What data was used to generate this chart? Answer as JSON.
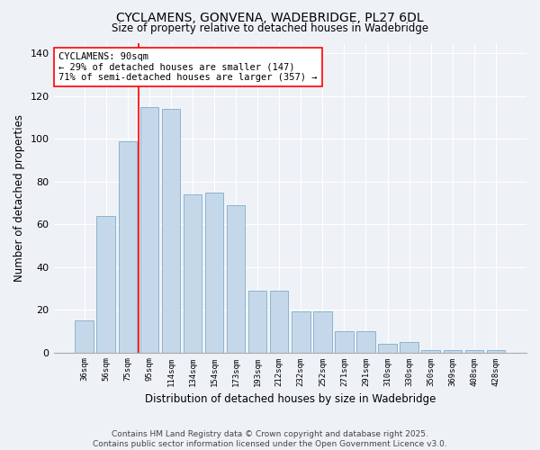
{
  "title": "CYCLAMENS, GONVENA, WADEBRIDGE, PL27 6DL",
  "subtitle": "Size of property relative to detached houses in Wadebridge",
  "xlabel": "Distribution of detached houses by size in Wadebridge",
  "ylabel": "Number of detached properties",
  "bar_color": "#c5d8ea",
  "bar_edge_color": "#8ab4d0",
  "categories": [
    "36sqm",
    "56sqm",
    "75sqm",
    "95sqm",
    "114sqm",
    "134sqm",
    "154sqm",
    "173sqm",
    "193sqm",
    "212sqm",
    "232sqm",
    "252sqm",
    "271sqm",
    "291sqm",
    "310sqm",
    "330sqm",
    "350sqm",
    "369sqm",
    "408sqm",
    "428sqm"
  ],
  "values": [
    15,
    64,
    99,
    115,
    114,
    74,
    75,
    69,
    29,
    29,
    19,
    19,
    10,
    10,
    4,
    5,
    1,
    1,
    1,
    1
  ],
  "red_line_x": 2.5,
  "annotation_title": "CYCLAMENS: 90sqm",
  "annotation_line1": "← 29% of detached houses are smaller (147)",
  "annotation_line2": "71% of semi-detached houses are larger (357) →",
  "ylim": [
    0,
    145
  ],
  "yticks": [
    0,
    20,
    40,
    60,
    80,
    100,
    120,
    140
  ],
  "footnote1": "Contains HM Land Registry data © Crown copyright and database right 2025.",
  "footnote2": "Contains public sector information licensed under the Open Government Licence v3.0.",
  "background_color": "#eef2f7",
  "grid_color": "#ffffff",
  "title_fontsize": 10,
  "subtitle_fontsize": 8.5,
  "xlabel_fontsize": 8.5,
  "ylabel_fontsize": 8.5,
  "annotation_fontsize": 7.5,
  "footnote_fontsize": 6.5
}
